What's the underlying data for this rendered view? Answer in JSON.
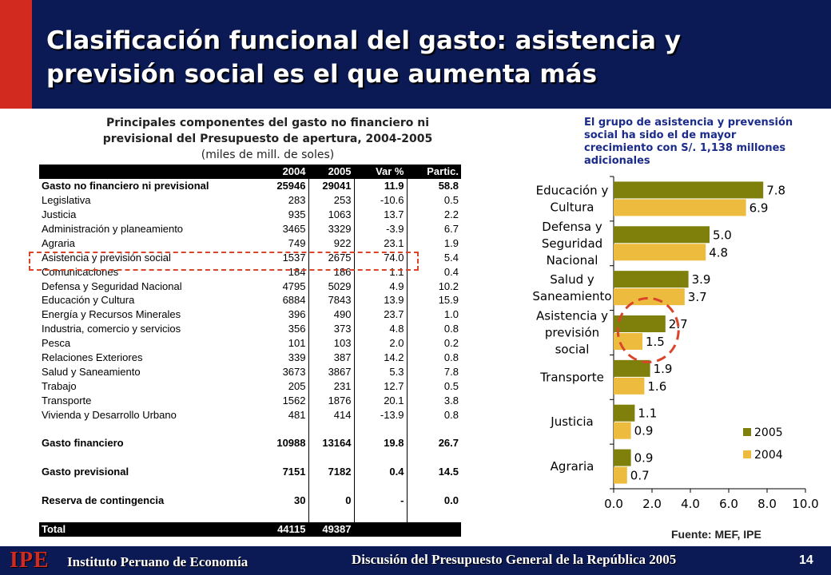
{
  "slide": {
    "title": "Clasificación funcional del gasto: asistencia y previsión social es el que aumenta más",
    "page_number": "14"
  },
  "table_heading": {
    "line1": "Principales componentes del gasto no financiero ni",
    "line2": "previsional del Presupuesto de apertura, 2004-2005",
    "line3": "(miles de mill. de soles)"
  },
  "table": {
    "headers": [
      "",
      "2004",
      "2005",
      "Var %",
      "Partic."
    ],
    "rows": [
      {
        "name": "Gasto no financiero ni previsional",
        "v2004": "25946",
        "v2005": "29041",
        "var": "11.9",
        "part": "58.8",
        "style": "bold"
      },
      {
        "name": "Legislativa",
        "v2004": "283",
        "v2005": "253",
        "var": "-10.6",
        "part": "0.5",
        "style": ""
      },
      {
        "name": "Justicia",
        "v2004": "935",
        "v2005": "1063",
        "var": "13.7",
        "part": "2.2",
        "style": ""
      },
      {
        "name": "Administración y planeamiento",
        "v2004": "3465",
        "v2005": "3329",
        "var": "-3.9",
        "part": "6.7",
        "style": ""
      },
      {
        "name": "Agraria",
        "v2004": "749",
        "v2005": "922",
        "var": "23.1",
        "part": "1.9",
        "style": ""
      },
      {
        "name": "Asistencia y previsión social",
        "v2004": "1537",
        "v2005": "2675",
        "var": "74.0",
        "part": "5.4",
        "style": "highlight"
      },
      {
        "name": "Comunicaciones",
        "v2004": "184",
        "v2005": "186",
        "var": "1.1",
        "part": "0.4",
        "style": ""
      },
      {
        "name": "Defensa y Seguridad Nacional",
        "v2004": "4795",
        "v2005": "5029",
        "var": "4.9",
        "part": "10.2",
        "style": ""
      },
      {
        "name": "Educación y Cultura",
        "v2004": "6884",
        "v2005": "7843",
        "var": "13.9",
        "part": "15.9",
        "style": ""
      },
      {
        "name": "Energía y Recursos Minerales",
        "v2004": "396",
        "v2005": "490",
        "var": "23.7",
        "part": "1.0",
        "style": ""
      },
      {
        "name": "Industria, comercio y servicios",
        "v2004": "356",
        "v2005": "373",
        "var": "4.8",
        "part": "0.8",
        "style": ""
      },
      {
        "name": "Pesca",
        "v2004": "101",
        "v2005": "103",
        "var": "2.0",
        "part": "0.2",
        "style": ""
      },
      {
        "name": "Relaciones Exteriores",
        "v2004": "339",
        "v2005": "387",
        "var": "14.2",
        "part": "0.8",
        "style": ""
      },
      {
        "name": "Salud y Saneamiento",
        "v2004": "3673",
        "v2005": "3867",
        "var": "5.3",
        "part": "7.8",
        "style": ""
      },
      {
        "name": "Trabajo",
        "v2004": "205",
        "v2005": "231",
        "var": "12.7",
        "part": "0.5",
        "style": ""
      },
      {
        "name": "Transporte",
        "v2004": "1562",
        "v2005": "1876",
        "var": "20.1",
        "part": "3.8",
        "style": ""
      },
      {
        "name": "Vivienda y Desarrollo Urbano",
        "v2004": "481",
        "v2005": "414",
        "var": "-13.9",
        "part": "0.8",
        "style": ""
      },
      {
        "name": "",
        "v2004": "",
        "v2005": "",
        "var": "",
        "part": "",
        "style": "blank"
      },
      {
        "name": "Gasto financiero",
        "v2004": "10988",
        "v2005": "13164",
        "var": "19.8",
        "part": "26.7",
        "style": "bold"
      },
      {
        "name": "",
        "v2004": "",
        "v2005": "",
        "var": "",
        "part": "",
        "style": "blank"
      },
      {
        "name": "Gasto previsional",
        "v2004": "7151",
        "v2005": "7182",
        "var": "0.4",
        "part": "14.5",
        "style": "bold"
      },
      {
        "name": "",
        "v2004": "",
        "v2005": "",
        "var": "",
        "part": "",
        "style": "blank"
      },
      {
        "name": "Reserva de contingencia",
        "v2004": "30",
        "v2005": "0",
        "var": "-",
        "part": "0.0",
        "style": "bold"
      },
      {
        "name": "",
        "v2004": "",
        "v2005": "",
        "var": "",
        "part": "",
        "style": "blank"
      },
      {
        "name": "Total",
        "v2004": "44115",
        "v2005": "49387",
        "var": "",
        "part": "",
        "style": "dark"
      }
    ]
  },
  "right_note": "El grupo de asistencia y prevensión social ha sido el de mayor crecimiento con S/. 1,138 millones adicionales",
  "source_note": "Fuente: MEF, IPE",
  "footer": {
    "logo_text": "IPE",
    "institute": "Instituto Peruano de Economía",
    "event": "Discusión del Presupuesto General de la República 2005"
  },
  "colors": {
    "header": "#0b1a55",
    "accent": "#d32a1f",
    "series_2005": "#7f7f0c",
    "series_2004": "#edbb3d",
    "highlight": "#d9452a"
  },
  "chart_data": {
    "type": "bar",
    "orientation": "horizontal",
    "categories": [
      [
        "Educación y",
        "Cultura"
      ],
      [
        "Defensa y",
        "Seguridad",
        "Nacional"
      ],
      [
        "Salud y",
        "Saneamiento"
      ],
      [
        "Asistencia y",
        "previsión",
        "social"
      ],
      [
        "Transporte"
      ],
      [
        "Justicia"
      ],
      [
        "Agraria"
      ]
    ],
    "series": [
      {
        "name": "2005",
        "values": [
          7.8,
          5.0,
          3.9,
          2.7,
          1.9,
          1.1,
          0.9
        ],
        "labels": [
          "7.8",
          "5.0",
          "3.9",
          "2.7",
          "1.9",
          "1.1",
          "0.9"
        ]
      },
      {
        "name": "2004",
        "values": [
          6.9,
          4.8,
          3.7,
          1.5,
          1.6,
          0.9,
          0.7
        ],
        "labels": [
          "6.9",
          "4.8",
          "3.7",
          "1.5",
          "1.6",
          "0.9",
          "0.7"
        ]
      }
    ],
    "xlim": [
      0,
      10
    ],
    "xticks": [
      "0.0",
      "2.0",
      "4.0",
      "6.0",
      "8.0",
      "10.0"
    ],
    "legend": {
      "position": "bottom-right",
      "entries": [
        "2005",
        "2004"
      ]
    },
    "highlighted_category_index": 3,
    "grid": false
  }
}
